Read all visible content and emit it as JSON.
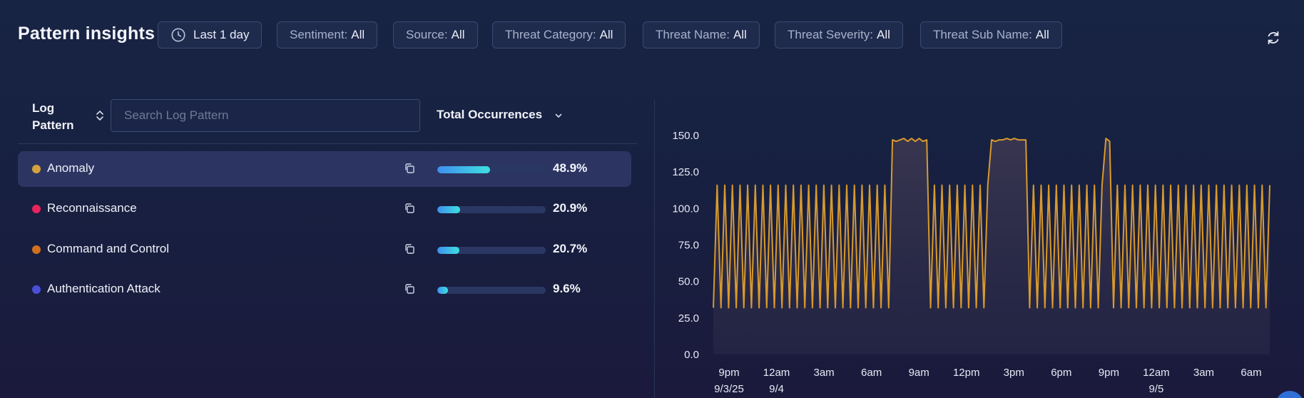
{
  "header": {
    "title": "Pattern insights",
    "time_range": "Last 1 day",
    "filters": [
      {
        "label": "Sentiment:",
        "value": "All"
      },
      {
        "label": "Source:",
        "value": "All"
      },
      {
        "label": "Threat Category:",
        "value": "All"
      },
      {
        "label": "Threat Name:",
        "value": "All"
      },
      {
        "label": "Threat Severity:",
        "value": "All"
      },
      {
        "label": "Threat Sub Name:",
        "value": "All"
      }
    ]
  },
  "table": {
    "log_pattern_header": "Log Pattern",
    "search_placeholder": "Search Log Pattern",
    "total_header": "Total Occurrences",
    "rows": [
      {
        "label": "Anomaly",
        "percent": "48.9%",
        "fraction": 0.489,
        "color": "#d4a23a",
        "selected": true
      },
      {
        "label": "Reconnaissance",
        "percent": "20.9%",
        "fraction": 0.209,
        "color": "#e8245c",
        "selected": false
      },
      {
        "label": "Command and Control",
        "percent": "20.7%",
        "fraction": 0.207,
        "color": "#d0701f",
        "selected": false
      },
      {
        "label": "Authentication Attack",
        "percent": "9.6%",
        "fraction": 0.096,
        "color": "#4b4fd8",
        "selected": false
      }
    ]
  },
  "chart_data": {
    "type": "line",
    "title": "",
    "xlabel": "",
    "ylabel": "",
    "ylim": [
      0,
      150
    ],
    "yticks": [
      "0.0",
      "25.0",
      "50.0",
      "75.0",
      "100.0",
      "125.0",
      "150.0"
    ],
    "xticks": [
      {
        "label": "9pm",
        "sub": "9/3/25"
      },
      {
        "label": "12am",
        "sub": "9/4"
      },
      {
        "label": "3am",
        "sub": ""
      },
      {
        "label": "6am",
        "sub": ""
      },
      {
        "label": "9am",
        "sub": ""
      },
      {
        "label": "12pm",
        "sub": ""
      },
      {
        "label": "3pm",
        "sub": ""
      },
      {
        "label": "6pm",
        "sub": ""
      },
      {
        "label": "9pm",
        "sub": ""
      },
      {
        "label": "12am",
        "sub": "9/5"
      },
      {
        "label": "3am",
        "sub": ""
      },
      {
        "label": "6am",
        "sub": ""
      }
    ],
    "line_color": "#d79a2e",
    "series": [
      {
        "segments": [
          {
            "kind": "oscillate",
            "count": 47,
            "low": 32,
            "high": 116
          },
          {
            "kind": "plateau",
            "values": [
              147,
              146,
              147,
              148,
              146,
              148,
              146,
              148,
              146,
              147
            ]
          },
          {
            "kind": "oscillate",
            "count": 16,
            "low": 32,
            "high": 116
          },
          {
            "kind": "plateau",
            "values": [
              147,
              146,
              147,
              147,
              148,
              147,
              148,
              147,
              147,
              147
            ]
          },
          {
            "kind": "oscillate",
            "count": 20,
            "low": 32,
            "high": 116
          },
          {
            "kind": "plateau",
            "values": [
              148,
              146
            ]
          },
          {
            "kind": "oscillate",
            "count": 42,
            "low": 32,
            "high": 116
          }
        ]
      }
    ]
  }
}
